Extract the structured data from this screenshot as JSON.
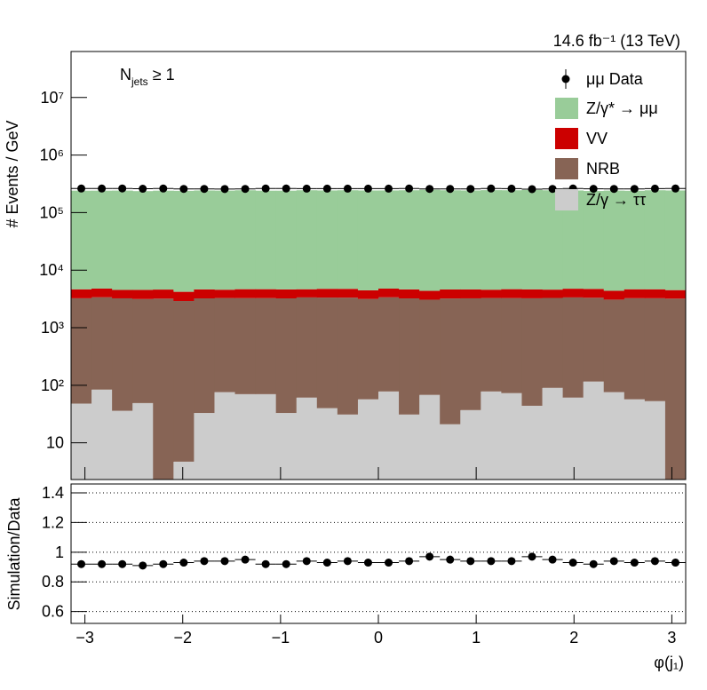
{
  "chart_data": [
    {
      "type": "stacked-histogram",
      "luminosity": "14.6 fb⁻¹ (13 TeV)",
      "selection": {
        "main": "N",
        "sub": "jets",
        "rest": " ≥ 1"
      },
      "y_label": "# Events / GeV",
      "log_y": true,
      "bins": [
        -3.1416,
        -2.9322,
        -2.7227,
        -2.5133,
        -2.3038,
        -2.0944,
        -1.885,
        -1.6755,
        -1.4661,
        -1.2566,
        -1.0472,
        -0.8378,
        -0.6283,
        -0.4189,
        -0.2094,
        0,
        0.2094,
        0.4189,
        0.6283,
        0.8378,
        1.0472,
        1.2566,
        1.4661,
        1.6755,
        1.885,
        2.0944,
        2.3038,
        2.5133,
        2.7227,
        2.9322,
        3.1416
      ],
      "xlim": [
        -3.1416,
        3.1416
      ],
      "ylim": [
        2.3,
        63000000
      ],
      "yticks": [
        {
          "value": 10,
          "label": "10"
        },
        {
          "value": 100,
          "label": "10²"
        },
        {
          "value": 1000,
          "label": "10³"
        },
        {
          "value": 10000,
          "label": "10⁴"
        },
        {
          "value": 100000,
          "label": "10⁵"
        },
        {
          "value": 1000000,
          "label": "10⁶"
        },
        {
          "value": 10000000,
          "label": "10⁷"
        }
      ],
      "data": {
        "name": "μμ Data",
        "color": "#000000",
        "values": [
          262000,
          262000,
          263000,
          260000,
          262000,
          258000,
          258000,
          257000,
          258000,
          262000,
          262000,
          261000,
          261000,
          261000,
          261000,
          261000,
          262000,
          258000,
          258000,
          258000,
          262000,
          261000,
          256000,
          258000,
          262000,
          259000,
          258000,
          258000,
          261000,
          262000
        ]
      },
      "series": [
        {
          "name": "Z/γ* → μμ",
          "color": "#99cc99",
          "values": [
            236000,
            236000,
            237000,
            232000,
            236000,
            235000,
            238000,
            237000,
            240000,
            236000,
            236000,
            240000,
            238000,
            240000,
            238000,
            238000,
            240000,
            245000,
            240000,
            238000,
            241000,
            240000,
            243000,
            240000,
            238000,
            233000,
            237000,
            235000,
            240000,
            238000
          ]
        },
        {
          "name": "VV",
          "color": "#cc0000",
          "values": [
            1400,
            1400,
            1300,
            1400,
            1400,
            1300,
            1400,
            1300,
            1400,
            1400,
            1400,
            1300,
            1400,
            1400,
            1300,
            1400,
            1400,
            1300,
            1400,
            1400,
            1300,
            1400,
            1400,
            1300,
            1400,
            1400,
            1300,
            1400,
            1400,
            1300
          ]
        },
        {
          "name": "NRB",
          "color": "#876455",
          "values": [
            3200,
            3300,
            3200,
            3100,
            3200,
            2900,
            3200,
            3200,
            3200,
            3200,
            3200,
            3300,
            3300,
            3300,
            3100,
            3300,
            3200,
            3000,
            3200,
            3200,
            3200,
            3200,
            3200,
            3200,
            3300,
            3200,
            3000,
            3200,
            3200,
            3200
          ]
        },
        {
          "name": "Z/γ → ττ",
          "color": "#cccccc",
          "values": [
            48,
            84,
            36,
            49,
            1,
            4.7,
            33,
            76,
            70,
            70,
            33,
            61,
            40,
            31,
            57,
            78,
            31,
            68,
            21,
            37,
            78,
            73,
            44,
            90,
            61,
            116,
            76,
            57,
            53,
            1
          ]
        }
      ]
    },
    {
      "type": "ratio",
      "y_label": "Simulation/Data",
      "x_label": "φ(j₁)",
      "xlim": [
        -3.1416,
        3.1416
      ],
      "xticks": [
        {
          "value": -3,
          "label": "−3"
        },
        {
          "value": -2,
          "label": "−2"
        },
        {
          "value": -1,
          "label": "−1"
        },
        0,
        1,
        2,
        3
      ],
      "ylim": [
        0.52,
        1.46
      ],
      "yticks": [
        0.6,
        0.8,
        1,
        1.2,
        1.4
      ],
      "grid": true,
      "values": [
        0.92,
        0.92,
        0.92,
        0.91,
        0.92,
        0.93,
        0.94,
        0.94,
        0.95,
        0.92,
        0.92,
        0.94,
        0.93,
        0.94,
        0.93,
        0.93,
        0.94,
        0.97,
        0.95,
        0.94,
        0.94,
        0.94,
        0.97,
        0.95,
        0.93,
        0.92,
        0.94,
        0.93,
        0.94,
        0.93
      ]
    }
  ]
}
